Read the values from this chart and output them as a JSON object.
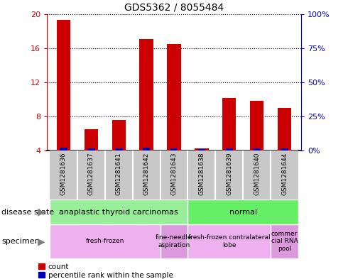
{
  "title": "GDS5362 / 8055484",
  "samples": [
    "GSM1281636",
    "GSM1281637",
    "GSM1281641",
    "GSM1281642",
    "GSM1281643",
    "GSM1281638",
    "GSM1281639",
    "GSM1281640",
    "GSM1281644"
  ],
  "count_values": [
    19.3,
    6.5,
    7.6,
    17.1,
    16.5,
    4.3,
    10.2,
    9.8,
    9.0
  ],
  "blue_bar_heights": [
    0.35,
    0.25,
    0.28,
    0.32,
    0.3,
    0.15,
    0.27,
    0.25,
    0.28
  ],
  "ylim_left": [
    4,
    20
  ],
  "ylim_right": [
    0,
    100
  ],
  "yticks_left": [
    4,
    8,
    12,
    16,
    20
  ],
  "yticks_right": [
    0,
    25,
    50,
    75,
    100
  ],
  "disease_state_groups": [
    {
      "label": "anaplastic thyroid carcinomas",
      "start": 0,
      "end": 5,
      "color": "#99EE99"
    },
    {
      "label": "normal",
      "start": 5,
      "end": 9,
      "color": "#66EE66"
    }
  ],
  "specimen_groups": [
    {
      "label": "fresh-frozen",
      "start": 0,
      "end": 4
    },
    {
      "label": "fine-needle\naspiration",
      "start": 4,
      "end": 5
    },
    {
      "label": "fresh-frozen contralateral\nlobe",
      "start": 5,
      "end": 8
    },
    {
      "label": "commer\ncial RNA\npool",
      "start": 8,
      "end": 9
    }
  ],
  "specimen_colors": [
    "#EEB0EE",
    "#DD99DD",
    "#EEB0EE",
    "#DD99DD"
  ],
  "bar_color_red": "#CC0000",
  "bar_color_blue": "#0000BB",
  "bar_width": 0.5,
  "legend_count_label": "count",
  "legend_percentile_label": "percentile rank within the sample",
  "left_axis_color": "#CC0000",
  "right_axis_color": "#0000BB",
  "background_color": "#FFFFFF",
  "row_label_disease": "disease state",
  "row_label_specimen": "specimen",
  "sample_label_bg": "#C8C8C8"
}
